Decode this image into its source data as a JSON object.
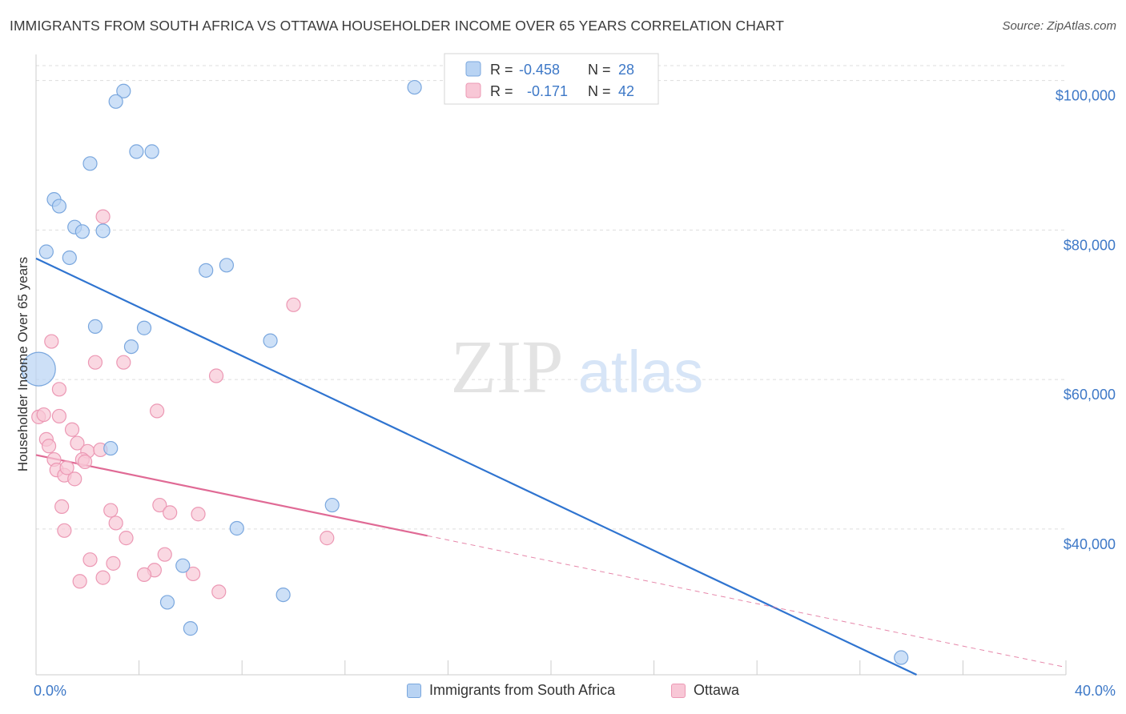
{
  "title": "IMMIGRANTS FROM SOUTH AFRICA VS OTTAWA HOUSEHOLDER INCOME OVER 65 YEARS CORRELATION CHART",
  "source": "Source: ZipAtlas.com",
  "watermark": {
    "zip": "ZIP",
    "atlas": "atlas"
  },
  "colors": {
    "blue_fill": "#b8d3f3",
    "blue_stroke": "#7aa7de",
    "blue_line": "#2f74d0",
    "pink_fill": "#f8c7d6",
    "pink_stroke": "#ec98b4",
    "pink_line": "#e06a95",
    "axis_text": "#3d78c7",
    "grid": "#dddddd"
  },
  "legend_top": {
    "items": [
      {
        "r_label": "R =",
        "r_value": "-0.458",
        "n_label": "N =",
        "n_value": "28",
        "color": "blue"
      },
      {
        "r_label": "R =",
        "r_value": "-0.171",
        "n_label": "N =",
        "n_value": "42",
        "color": "pink"
      }
    ]
  },
  "legend_bottom": [
    {
      "label": "Immigrants from South Africa",
      "color": "blue"
    },
    {
      "label": "Ottawa",
      "color": "pink"
    }
  ],
  "chart_data": {
    "type": "scatter",
    "title": "IMMIGRANTS FROM SOUTH AFRICA VS OTTAWA HOUSEHOLDER INCOME OVER 65 YEARS CORRELATION CHART",
    "xlabel": "",
    "ylabel": "Householder Income Over 65 years",
    "xlim": [
      0,
      40
    ],
    "ylim": [
      20500,
      103500
    ],
    "x_tick_labels": [
      {
        "value": 0,
        "label": "0.0%"
      },
      {
        "value": 40,
        "label": "40.0%"
      }
    ],
    "y_ticks": [
      {
        "value": 40000,
        "label": "$40,000"
      },
      {
        "value": 60000,
        "label": "$60,000"
      },
      {
        "value": 80000,
        "label": "$80,000"
      },
      {
        "value": 100000,
        "label": "$100,000"
      }
    ],
    "x_minor_ticks": [
      4,
      8,
      12,
      16,
      20,
      24,
      28,
      32,
      36,
      40
    ],
    "grid": true,
    "series": [
      {
        "name": "Immigrants from South Africa",
        "color": "blue",
        "trend": {
          "x": [
            0,
            34.2
          ],
          "y": [
            76200,
            20500
          ],
          "dashed_extension": false
        },
        "points": [
          {
            "x": 3.4,
            "y": 98600
          },
          {
            "x": 3.1,
            "y": 97200
          },
          {
            "x": 14.7,
            "y": 99100
          },
          {
            "x": 2.1,
            "y": 88900
          },
          {
            "x": 3.9,
            "y": 90500
          },
          {
            "x": 4.5,
            "y": 90500
          },
          {
            "x": 0.7,
            "y": 84100
          },
          {
            "x": 0.9,
            "y": 83200
          },
          {
            "x": 1.5,
            "y": 80400
          },
          {
            "x": 1.8,
            "y": 79800
          },
          {
            "x": 2.6,
            "y": 79900
          },
          {
            "x": 0.4,
            "y": 77100
          },
          {
            "x": 1.3,
            "y": 76300
          },
          {
            "x": 6.6,
            "y": 74600
          },
          {
            "x": 7.4,
            "y": 75300
          },
          {
            "x": 2.3,
            "y": 67100
          },
          {
            "x": 4.2,
            "y": 66900
          },
          {
            "x": 3.7,
            "y": 64400
          },
          {
            "x": 9.1,
            "y": 65200
          },
          {
            "x": 0.1,
            "y": 61400,
            "size": "large"
          },
          {
            "x": 2.9,
            "y": 50800
          },
          {
            "x": 11.5,
            "y": 43200
          },
          {
            "x": 7.8,
            "y": 40100
          },
          {
            "x": 5.7,
            "y": 35100
          },
          {
            "x": 5.1,
            "y": 30200
          },
          {
            "x": 9.6,
            "y": 31200
          },
          {
            "x": 6.0,
            "y": 26700
          },
          {
            "x": 33.6,
            "y": 22800
          }
        ]
      },
      {
        "name": "Ottawa",
        "color": "pink",
        "trend": {
          "x": [
            0,
            15.2
          ],
          "y": [
            49900,
            39100
          ],
          "dashed_to": {
            "x": 40,
            "y": 21500
          }
        },
        "points": [
          {
            "x": 2.6,
            "y": 81800
          },
          {
            "x": 10.0,
            "y": 70000
          },
          {
            "x": 0.6,
            "y": 65100
          },
          {
            "x": 2.3,
            "y": 62300
          },
          {
            "x": 3.4,
            "y": 62300
          },
          {
            "x": 7.0,
            "y": 60500
          },
          {
            "x": 0.9,
            "y": 58700
          },
          {
            "x": 4.7,
            "y": 55800
          },
          {
            "x": 0.1,
            "y": 55000
          },
          {
            "x": 0.3,
            "y": 55300
          },
          {
            "x": 1.4,
            "y": 53300
          },
          {
            "x": 0.4,
            "y": 52000
          },
          {
            "x": 0.5,
            "y": 51100
          },
          {
            "x": 1.6,
            "y": 51500
          },
          {
            "x": 2.0,
            "y": 50400
          },
          {
            "x": 2.5,
            "y": 50600
          },
          {
            "x": 0.7,
            "y": 49300
          },
          {
            "x": 1.8,
            "y": 49300
          },
          {
            "x": 0.8,
            "y": 47900
          },
          {
            "x": 1.1,
            "y": 47200
          },
          {
            "x": 1.5,
            "y": 46700
          },
          {
            "x": 1.2,
            "y": 48200
          },
          {
            "x": 1.9,
            "y": 49000
          },
          {
            "x": 1.0,
            "y": 43000
          },
          {
            "x": 2.9,
            "y": 42500
          },
          {
            "x": 4.8,
            "y": 43200
          },
          {
            "x": 5.2,
            "y": 42200
          },
          {
            "x": 6.3,
            "y": 42000
          },
          {
            "x": 3.1,
            "y": 40800
          },
          {
            "x": 1.1,
            "y": 39800
          },
          {
            "x": 3.5,
            "y": 38800
          },
          {
            "x": 11.3,
            "y": 38800
          },
          {
            "x": 2.1,
            "y": 35900
          },
          {
            "x": 3.0,
            "y": 35400
          },
          {
            "x": 5.0,
            "y": 36600
          },
          {
            "x": 4.6,
            "y": 34500
          },
          {
            "x": 4.2,
            "y": 33900
          },
          {
            "x": 6.1,
            "y": 34000
          },
          {
            "x": 1.7,
            "y": 33000
          },
          {
            "x": 2.6,
            "y": 33500
          },
          {
            "x": 7.1,
            "y": 31600
          },
          {
            "x": 0.9,
            "y": 55100
          }
        ]
      }
    ]
  }
}
